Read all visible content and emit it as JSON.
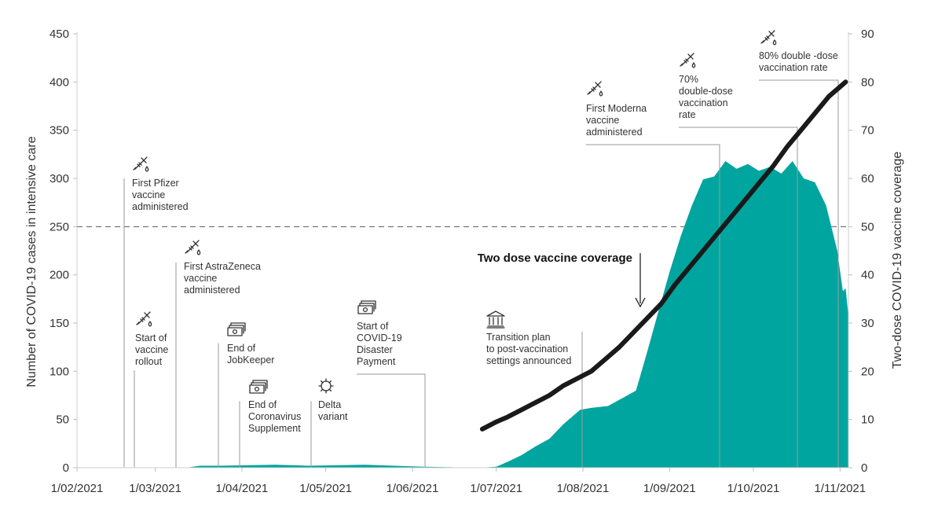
{
  "colors": {
    "icu_area": "#00a59f",
    "coverage_line": "#1a1a1a",
    "axis_text": "#333333",
    "leader_lines": "#9a9a9a",
    "threshold_line": "#555555"
  },
  "chart_data": {
    "type": "area",
    "title": "",
    "y_left": {
      "label": "Number of COVID-19 cases in intensive care",
      "min": 0,
      "max": 450,
      "ticks": [
        0,
        50,
        100,
        150,
        200,
        250,
        300,
        350,
        400,
        450
      ]
    },
    "y_right": {
      "label": "Two-dose COVID-19 vaccine coverage",
      "min": 0,
      "max": 90,
      "ticks": [
        0,
        10,
        20,
        30,
        40,
        50,
        60,
        70,
        80,
        90
      ]
    },
    "x_axis": {
      "start": "2021-02-01",
      "end": "2021-11-04",
      "tick_dates": [
        "2021-02-01",
        "2021-03-01",
        "2021-04-01",
        "2021-05-01",
        "2021-06-01",
        "2021-07-01",
        "2021-08-01",
        "2021-09-01",
        "2021-10-01",
        "2021-11-01"
      ],
      "tick_labels": [
        "1/02/2021",
        "1/03/2021",
        "1/04/2021",
        "1/05/2021",
        "1/06/2021",
        "1/07/2021",
        "1/08/2021",
        "1/09/2021",
        "1/10/2021",
        "1/11/2021"
      ]
    },
    "reference_line": {
      "axis": "left",
      "value": 250,
      "style": "dashed"
    },
    "series": [
      {
        "name": "",
        "type": "area",
        "axis": "left",
        "color": "#00a59f",
        "points": [
          [
            "2021-02-01",
            0
          ],
          [
            "2021-02-20",
            0
          ],
          [
            "2021-03-12",
            0
          ],
          [
            "2021-03-17",
            2
          ],
          [
            "2021-03-24",
            2
          ],
          [
            "2021-04-13",
            3
          ],
          [
            "2021-04-25",
            2
          ],
          [
            "2021-05-15",
            3
          ],
          [
            "2021-06-05",
            1
          ],
          [
            "2021-06-25",
            0
          ],
          [
            "2021-07-01",
            1
          ],
          [
            "2021-07-05",
            6
          ],
          [
            "2021-07-10",
            13
          ],
          [
            "2021-07-15",
            22
          ],
          [
            "2021-07-20",
            30
          ],
          [
            "2021-07-25",
            45
          ],
          [
            "2021-07-31",
            60
          ],
          [
            "2021-08-04",
            62
          ],
          [
            "2021-08-10",
            64
          ],
          [
            "2021-08-15",
            72
          ],
          [
            "2021-08-20",
            80
          ],
          [
            "2021-08-24",
            120
          ],
          [
            "2021-08-28",
            162
          ],
          [
            "2021-09-01",
            203
          ],
          [
            "2021-09-05",
            240
          ],
          [
            "2021-09-09",
            272
          ],
          [
            "2021-09-13",
            299
          ],
          [
            "2021-09-17",
            302
          ],
          [
            "2021-09-21",
            318
          ],
          [
            "2021-09-25",
            310
          ],
          [
            "2021-09-29",
            315
          ],
          [
            "2021-10-03",
            308
          ],
          [
            "2021-10-07",
            312
          ],
          [
            "2021-10-11",
            305
          ],
          [
            "2021-10-15",
            318
          ],
          [
            "2021-10-19",
            300
          ],
          [
            "2021-10-23",
            296
          ],
          [
            "2021-10-27",
            272
          ],
          [
            "2021-10-31",
            225
          ],
          [
            "2021-11-02",
            183
          ],
          [
            "2021-11-03",
            186
          ],
          [
            "2021-11-04",
            157
          ]
        ]
      },
      {
        "name": "Two dose vaccine coverage",
        "type": "line",
        "axis": "right",
        "color": "#1a1a1a",
        "points": [
          [
            "2021-06-26",
            8
          ],
          [
            "2021-07-01",
            9.5
          ],
          [
            "2021-07-05",
            10.5
          ],
          [
            "2021-07-10",
            12
          ],
          [
            "2021-07-15",
            13.5
          ],
          [
            "2021-07-20",
            15
          ],
          [
            "2021-07-25",
            17
          ],
          [
            "2021-07-30",
            18.5
          ],
          [
            "2021-08-04",
            20
          ],
          [
            "2021-08-09",
            22.5
          ],
          [
            "2021-08-14",
            25
          ],
          [
            "2021-08-19",
            28
          ],
          [
            "2021-08-24",
            31
          ],
          [
            "2021-08-29",
            34
          ],
          [
            "2021-09-03",
            38
          ],
          [
            "2021-09-08",
            41.5
          ],
          [
            "2021-09-13",
            45
          ],
          [
            "2021-09-18",
            48.5
          ],
          [
            "2021-09-23",
            52
          ],
          [
            "2021-09-28",
            55.5
          ],
          [
            "2021-10-03",
            59
          ],
          [
            "2021-10-08",
            62.5
          ],
          [
            "2021-10-13",
            66.5
          ],
          [
            "2021-10-18",
            70
          ],
          [
            "2021-10-23",
            73.5
          ],
          [
            "2021-10-28",
            77
          ],
          [
            "2021-11-03",
            80
          ]
        ]
      }
    ],
    "annotations": [
      {
        "lines": [
          "First Pfizer",
          "vaccine",
          "administered"
        ],
        "date": "2021-02-21",
        "y": 300,
        "icon": "syringe-icon"
      },
      {
        "lines": [
          "Start of",
          "vaccine",
          "rollout"
        ],
        "date": "2021-02-22",
        "y": 101,
        "icon": "syringe-icon"
      },
      {
        "lines": [
          "First AstraZeneca",
          "vaccine",
          "administered"
        ],
        "date": "2021-03-07",
        "y": 213,
        "icon": "syringe-icon"
      },
      {
        "lines": [
          "End of",
          "JobKeeper"
        ],
        "date": "2021-03-28",
        "y": 129,
        "icon": "money-icon"
      },
      {
        "lines": [
          "End of",
          "Coronavirus",
          "Supplement"
        ],
        "date": "2021-03-31",
        "y": 69,
        "icon": "money-icon"
      },
      {
        "lines": [
          "Delta",
          "variant"
        ],
        "date": "2021-04-22",
        "y": 69,
        "icon": "virus-icon"
      },
      {
        "lines": [
          "Start of",
          "COVID-19",
          "Disaster",
          "Payment"
        ],
        "date": "2021-06-03",
        "y": 99,
        "icon": "money-icon"
      },
      {
        "lines": [
          "Transition plan",
          "to post-vaccination",
          "settings announced"
        ],
        "date": "2021-08-06",
        "y": 141,
        "icon": "building-icon"
      },
      {
        "lines": [
          "First Moderna",
          "vaccine",
          "administered"
        ],
        "date": "2021-09-22",
        "y": 334,
        "icon": "syringe-icon"
      },
      {
        "lines": [
          "70%",
          "double-dose",
          "vaccination",
          "rate"
        ],
        "date": "2021-10-18",
        "y": 352,
        "icon": "syringe-icon"
      },
      {
        "lines": [
          "80% double -dose",
          "vaccination rate"
        ],
        "date": "2021-11-02",
        "y": 397,
        "icon": "syringe-icon"
      }
    ],
    "callout": {
      "text": "Two dose vaccine coverage"
    }
  }
}
